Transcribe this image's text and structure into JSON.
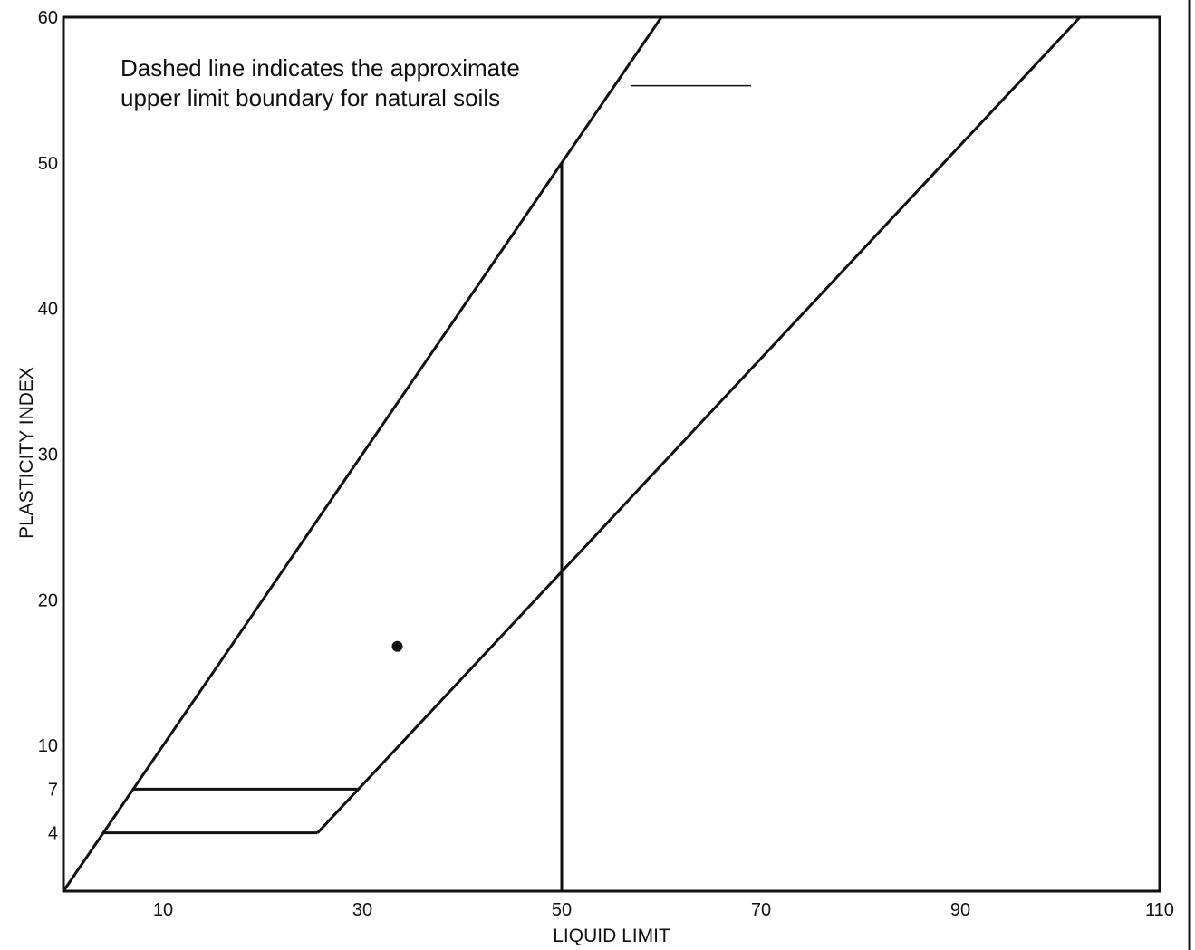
{
  "chart_data": {
    "type": "line",
    "title": "",
    "xlabel": "LIQUID LIMIT",
    "ylabel": "PLASTICITY INDEX",
    "xlim": [
      0,
      110
    ],
    "ylim": [
      0,
      60
    ],
    "x_ticks": [
      10,
      30,
      50,
      70,
      90,
      110
    ],
    "y_ticks": [
      4,
      7,
      10,
      20,
      30,
      40,
      50,
      60
    ],
    "grid": false,
    "annotation": {
      "line1": "Dashed line indicates the approximate",
      "line2": "upper limit boundary for natural soils",
      "pointer_from_x": 57,
      "pointer_to_x": 69,
      "pointer_y": 55.3
    },
    "series": [
      {
        "points": [
          [
            0,
            0
          ],
          [
            60,
            60
          ]
        ]
      },
      {
        "points": [
          [
            25.5,
            4
          ],
          [
            102,
            60
          ]
        ]
      },
      {
        "points": [
          [
            50,
            0
          ],
          [
            50,
            50
          ]
        ]
      },
      {
        "points": [
          [
            4,
            4
          ],
          [
            25.5,
            4
          ]
        ]
      },
      {
        "points": [
          [
            7,
            7
          ],
          [
            29.5,
            7
          ]
        ]
      }
    ],
    "points": [
      {
        "x": 33.5,
        "y": 16.8
      }
    ]
  }
}
